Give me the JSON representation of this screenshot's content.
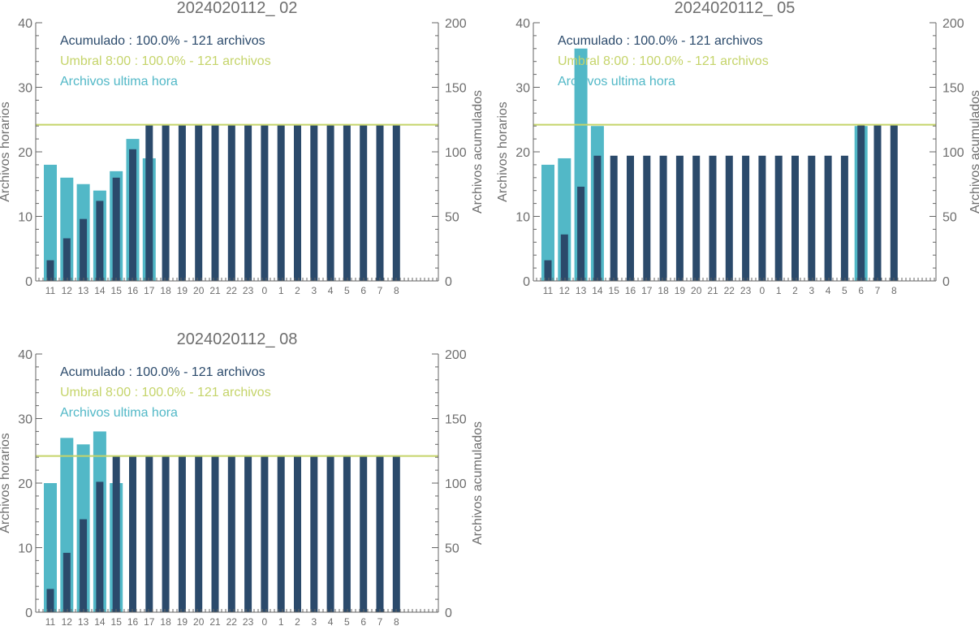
{
  "colors": {
    "accumulated": "#2b4a6b",
    "threshold": "#c5d46a",
    "last_hour": "#52b8c7",
    "axis": "#666666",
    "text": "#6e6e6e"
  },
  "legend": {
    "accumulated": "Acumulado : 100.0% - 121 archivos",
    "threshold": "Umbral 8:00 : 100.0% - 121 archivos",
    "last_hour": "Archivos ultima hora"
  },
  "chart_data": [
    {
      "type": "bar",
      "title": "2024020112_ 02",
      "ylabel_left": "Archivos horarios",
      "ylabel_right": "Archivos acumulados",
      "ylim_left": [
        0,
        40
      ],
      "ylim_right": [
        0,
        200
      ],
      "left_ticks": [
        0,
        10,
        20,
        30,
        40
      ],
      "right_ticks": [
        0,
        50,
        100,
        150,
        200
      ],
      "categories": [
        "11",
        "12",
        "13",
        "14",
        "15",
        "16",
        "17",
        "18",
        "19",
        "20",
        "21",
        "22",
        "23",
        "0",
        "1",
        "2",
        "3",
        "4",
        "5",
        "6",
        "7",
        "8"
      ],
      "threshold": 121,
      "series": [
        {
          "name": "Archivos ultima hora",
          "axis": "left",
          "values": [
            18,
            16,
            15,
            14,
            17,
            22,
            19,
            0,
            0,
            0,
            0,
            0,
            0,
            0,
            0,
            0,
            0,
            0,
            0,
            0,
            0,
            0
          ]
        },
        {
          "name": "Acumulado",
          "axis": "right",
          "values": [
            16,
            33,
            48,
            62,
            80,
            102,
            121,
            121,
            121,
            121,
            121,
            121,
            121,
            121,
            121,
            121,
            121,
            121,
            121,
            121,
            121,
            121
          ]
        }
      ],
      "legend": "top-left"
    },
    {
      "type": "bar",
      "title": "2024020112_ 05",
      "ylabel_left": "Archivos horarios",
      "ylabel_right": "Archivos acumulados",
      "ylim_left": [
        0,
        40
      ],
      "ylim_right": [
        0,
        200
      ],
      "left_ticks": [
        0,
        10,
        20,
        30,
        40
      ],
      "right_ticks": [
        0,
        50,
        100,
        150,
        200
      ],
      "categories": [
        "11",
        "12",
        "13",
        "14",
        "15",
        "16",
        "17",
        "18",
        "19",
        "20",
        "21",
        "22",
        "23",
        "0",
        "1",
        "2",
        "3",
        "4",
        "5",
        "6",
        "7",
        "8"
      ],
      "threshold": 121,
      "series": [
        {
          "name": "Archivos ultima hora",
          "axis": "left",
          "values": [
            18,
            19,
            36,
            24,
            0,
            0,
            0,
            0,
            0,
            0,
            0,
            0,
            0,
            0,
            0,
            0,
            0,
            0,
            0,
            24,
            0,
            0
          ]
        },
        {
          "name": "Acumulado",
          "axis": "right",
          "values": [
            16,
            36,
            73,
            97,
            97,
            97,
            97,
            97,
            97,
            97,
            97,
            97,
            97,
            97,
            97,
            97,
            97,
            97,
            97,
            121,
            121,
            121
          ]
        }
      ],
      "legend": "top-left"
    },
    {
      "type": "bar",
      "title": "2024020112_ 08",
      "ylabel_left": "Archivos horarios",
      "ylabel_right": "Archivos acumulados",
      "ylim_left": [
        0,
        40
      ],
      "ylim_right": [
        0,
        200
      ],
      "left_ticks": [
        0,
        10,
        20,
        30,
        40
      ],
      "right_ticks": [
        0,
        50,
        100,
        150,
        200
      ],
      "categories": [
        "11",
        "12",
        "13",
        "14",
        "15",
        "16",
        "17",
        "18",
        "19",
        "20",
        "21",
        "22",
        "23",
        "0",
        "1",
        "2",
        "3",
        "4",
        "5",
        "6",
        "7",
        "8"
      ],
      "threshold": 121,
      "series": [
        {
          "name": "Archivos ultima hora",
          "axis": "left",
          "values": [
            20,
            27,
            26,
            28,
            20,
            0,
            0,
            0,
            0,
            0,
            0,
            0,
            0,
            0,
            0,
            0,
            0,
            0,
            0,
            0,
            0,
            0
          ]
        },
        {
          "name": "Acumulado",
          "axis": "right",
          "values": [
            18,
            46,
            72,
            101,
            121,
            121,
            121,
            121,
            121,
            121,
            121,
            121,
            121,
            121,
            121,
            121,
            121,
            121,
            121,
            121,
            121,
            121
          ]
        }
      ],
      "legend": "top-left"
    }
  ]
}
